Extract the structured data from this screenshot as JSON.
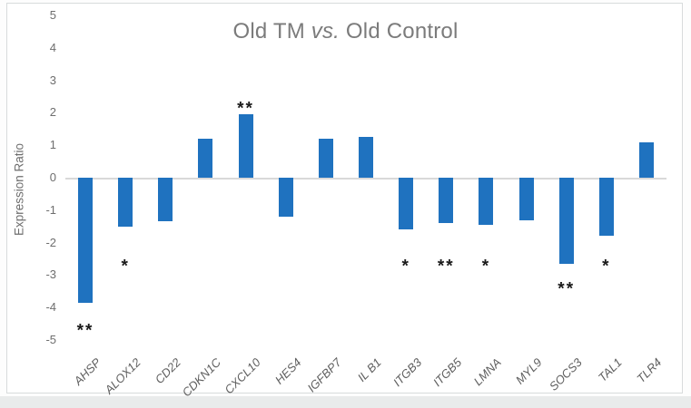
{
  "chart_data": {
    "type": "bar",
    "title": "Old TM vs. Old Control",
    "title_parts": {
      "prefix": "Old TM ",
      "italic": "vs.",
      "suffix": " Old Control"
    },
    "ylabel": "Expression Ratio",
    "xlabel": "",
    "ylim": [
      -5,
      5
    ],
    "ytick_step": 1,
    "grid": false,
    "legend": false,
    "categories": [
      "AHSP",
      "ALOX12",
      "CD22",
      "CDKN1C",
      "CXCL10",
      "HES4",
      "IGFBP7",
      "IL B1",
      "ITGB3",
      "ITGB5",
      "LMNA",
      "MYL9",
      "SOCS3",
      "TAL1",
      "TLR4"
    ],
    "values": [
      -3.85,
      -1.5,
      -1.35,
      1.2,
      1.95,
      -1.2,
      1.2,
      1.25,
      -1.6,
      -1.4,
      -1.45,
      -1.3,
      -2.65,
      -1.8,
      1.1
    ],
    "significance": [
      "**",
      "*",
      "",
      "",
      "**",
      "",
      "",
      "",
      "*",
      "**",
      "*",
      "",
      "**",
      "*",
      ""
    ],
    "significance_y": [
      -4.65,
      -2.65,
      null,
      null,
      2.2,
      null,
      null,
      null,
      -2.65,
      -2.65,
      -2.65,
      null,
      -3.35,
      -2.65,
      null
    ],
    "colors": {
      "bar": "#1F72BF",
      "title": "#7B7B7B",
      "axis_text": "#6E6E6E",
      "x_label_text": "#5E5E5E",
      "significance": "#1A1A1A",
      "zero_line": "#D9D9D9",
      "frame_border": "#D8DBDC",
      "bottom_band": "#E9EBEB"
    }
  }
}
